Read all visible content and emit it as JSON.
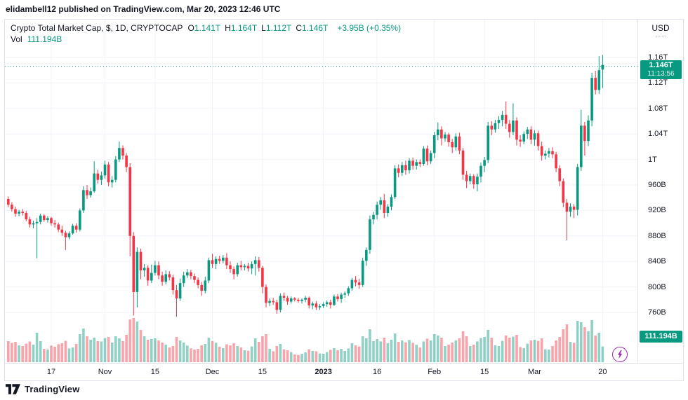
{
  "header": {
    "attribution": "elidambell12 published on TradingView.com, Mar 20, 2023 12:46 UTC"
  },
  "legend": {
    "title": "Crypto Total Market Cap, $, 1D, CRYPTOCAP",
    "ohlc": [
      {
        "k": "O",
        "v": "1.141T"
      },
      {
        "k": "H",
        "v": "1.164T"
      },
      {
        "k": "L",
        "v": "1.112T"
      },
      {
        "k": "C",
        "v": "1.146T"
      }
    ],
    "change": "+3.95B (+0.35%)",
    "vol_label": "Vol",
    "vol_value": "111.194B"
  },
  "price_axis": {
    "unit": "USD",
    "ticks": [
      {
        "value": 1160,
        "label": "1.16T"
      },
      {
        "value": 1120,
        "label": "1.12T"
      },
      {
        "value": 1080,
        "label": "1.08T"
      },
      {
        "value": 1040,
        "label": "1.04T"
      },
      {
        "value": 1000,
        "label": "1T"
      },
      {
        "value": 960,
        "label": "960B"
      },
      {
        "value": 920,
        "label": "920B"
      },
      {
        "value": 880,
        "label": "880B"
      },
      {
        "value": 840,
        "label": "840B"
      },
      {
        "value": 800,
        "label": "800B"
      },
      {
        "value": 760,
        "label": "760B"
      }
    ],
    "last_price_badge": {
      "price": "1.146T",
      "countdown": "11:13:56"
    },
    "volume_badge": "111.194B"
  },
  "time_axis": {
    "ticks": [
      {
        "index": 12,
        "label": "17"
      },
      {
        "index": 27,
        "label": "Nov"
      },
      {
        "index": 41,
        "label": "15"
      },
      {
        "index": 57,
        "label": "Dec"
      },
      {
        "index": 71,
        "label": "15"
      },
      {
        "index": 88,
        "label": "2023",
        "bold": true
      },
      {
        "index": 103,
        "label": "16"
      },
      {
        "index": 119,
        "label": "Feb"
      },
      {
        "index": 133,
        "label": "15"
      },
      {
        "index": 147,
        "label": "Mar"
      },
      {
        "index": 166,
        "label": "20"
      }
    ]
  },
  "footer": {
    "brand": "TradingView"
  },
  "colors": {
    "up": "#089981",
    "down": "#f23645",
    "vol_up": "rgba(8,153,129,0.45)",
    "vol_down": "rgba(242,54,69,0.45)",
    "grid": "#f0f3fa",
    "text": "#131722",
    "badge": "#089981",
    "lightning": "#9c27b0"
  },
  "chart_data": {
    "type": "candlestick",
    "title": "Crypto Total Market Cap",
    "interval": "1D",
    "currency": "USD",
    "units": "billions USD",
    "start_date": "2022-10-05",
    "end_date": "2023-03-20",
    "ylim": [
      740,
      1185
    ],
    "grid": true,
    "current_price": 1146,
    "current_volume": 111.194,
    "candles_format": [
      "open",
      "high",
      "low",
      "close",
      "volume"
    ],
    "candles": [
      [
        938,
        942,
        925,
        929,
        150
      ],
      [
        929,
        933,
        918,
        922,
        138
      ],
      [
        922,
        926,
        910,
        915,
        145
      ],
      [
        915,
        921,
        911,
        918,
        120
      ],
      [
        918,
        922,
        912,
        916,
        115
      ],
      [
        916,
        919,
        903,
        906,
        132
      ],
      [
        906,
        910,
        893,
        898,
        148
      ],
      [
        898,
        904,
        892,
        900,
        125
      ],
      [
        900,
        908,
        845,
        902,
        210
      ],
      [
        902,
        915,
        898,
        912,
        150
      ],
      [
        912,
        914,
        902,
        905,
        95
      ],
      [
        905,
        911,
        901,
        908,
        90
      ],
      [
        908,
        910,
        896,
        900,
        118
      ],
      [
        900,
        905,
        893,
        898,
        110
      ],
      [
        898,
        901,
        886,
        890,
        128
      ],
      [
        890,
        896,
        880,
        885,
        135
      ],
      [
        885,
        888,
        858,
        878,
        152
      ],
      [
        878,
        887,
        875,
        884,
        98
      ],
      [
        884,
        899,
        882,
        896,
        105
      ],
      [
        896,
        900,
        885,
        890,
        130
      ],
      [
        890,
        923,
        887,
        920,
        200
      ],
      [
        920,
        958,
        916,
        952,
        240
      ],
      [
        952,
        960,
        938,
        944,
        185
      ],
      [
        944,
        956,
        940,
        950,
        160
      ],
      [
        950,
        997,
        948,
        978,
        175
      ],
      [
        978,
        984,
        962,
        968,
        150
      ],
      [
        968,
        981,
        960,
        975,
        148
      ],
      [
        975,
        998,
        970,
        992,
        172
      ],
      [
        992,
        996,
        958,
        964,
        180
      ],
      [
        964,
        974,
        956,
        968,
        140
      ],
      [
        968,
        1005,
        964,
        1000,
        185
      ],
      [
        1000,
        1028,
        996,
        1018,
        170
      ],
      [
        1018,
        1022,
        1000,
        1006,
        150
      ],
      [
        1006,
        1010,
        980,
        988,
        195
      ],
      [
        988,
        994,
        848,
        880,
        305
      ],
      [
        880,
        886,
        755,
        792,
        315
      ],
      [
        792,
        862,
        768,
        855,
        290
      ],
      [
        855,
        860,
        812,
        826,
        230
      ],
      [
        826,
        836,
        816,
        830,
        185
      ],
      [
        830,
        834,
        802,
        810,
        160
      ],
      [
        810,
        835,
        806,
        822,
        165
      ],
      [
        822,
        841,
        818,
        834,
        170
      ],
      [
        834,
        840,
        812,
        818,
        155
      ],
      [
        818,
        824,
        802,
        808,
        140
      ],
      [
        808,
        826,
        804,
        820,
        125
      ],
      [
        820,
        825,
        810,
        815,
        105
      ],
      [
        815,
        819,
        788,
        795,
        115
      ],
      [
        795,
        803,
        753,
        782,
        180
      ],
      [
        782,
        813,
        778,
        806,
        155
      ],
      [
        806,
        824,
        800,
        818,
        140
      ],
      [
        818,
        828,
        814,
        823,
        118
      ],
      [
        823,
        827,
        812,
        817,
        98
      ],
      [
        817,
        821,
        806,
        811,
        90
      ],
      [
        811,
        815,
        798,
        803,
        95
      ],
      [
        803,
        808,
        786,
        794,
        120
      ],
      [
        794,
        816,
        790,
        810,
        130
      ],
      [
        810,
        846,
        806,
        842,
        175
      ],
      [
        842,
        852,
        830,
        836,
        150
      ],
      [
        836,
        848,
        828,
        844,
        138
      ],
      [
        844,
        849,
        836,
        841,
        110
      ],
      [
        841,
        850,
        837,
        846,
        100
      ],
      [
        846,
        853,
        828,
        834,
        128
      ],
      [
        834,
        840,
        822,
        828,
        120
      ],
      [
        828,
        832,
        812,
        820,
        135
      ],
      [
        820,
        838,
        816,
        834,
        115
      ],
      [
        834,
        841,
        826,
        831,
        105
      ],
      [
        831,
        836,
        826,
        833,
        85
      ],
      [
        833,
        838,
        824,
        829,
        82
      ],
      [
        829,
        840,
        820,
        836,
        112
      ],
      [
        836,
        848,
        818,
        842,
        170
      ],
      [
        842,
        847,
        824,
        830,
        145
      ],
      [
        830,
        833,
        790,
        800,
        185
      ],
      [
        800,
        804,
        768,
        775,
        200
      ],
      [
        775,
        782,
        770,
        778,
        95
      ],
      [
        778,
        783,
        772,
        776,
        78
      ],
      [
        776,
        780,
        758,
        764,
        115
      ],
      [
        764,
        790,
        760,
        786,
        130
      ],
      [
        786,
        791,
        778,
        783,
        92
      ],
      [
        783,
        786,
        772,
        777,
        85
      ],
      [
        777,
        785,
        774,
        782,
        70
      ],
      [
        782,
        784,
        777,
        780,
        55
      ],
      [
        780,
        783,
        775,
        778,
        52
      ],
      [
        778,
        782,
        774,
        780,
        60
      ],
      [
        780,
        786,
        776,
        783,
        70
      ],
      [
        783,
        785,
        766,
        771,
        92
      ],
      [
        771,
        777,
        765,
        774,
        80
      ],
      [
        774,
        778,
        764,
        768,
        78
      ],
      [
        768,
        773,
        764,
        770,
        62
      ],
      [
        770,
        776,
        767,
        773,
        60
      ],
      [
        773,
        779,
        769,
        776,
        72
      ],
      [
        776,
        780,
        766,
        772,
        88
      ],
      [
        772,
        788,
        770,
        785,
        100
      ],
      [
        785,
        789,
        777,
        781,
        85
      ],
      [
        781,
        791,
        775,
        788,
        95
      ],
      [
        788,
        793,
        783,
        790,
        80
      ],
      [
        790,
        801,
        786,
        798,
        98
      ],
      [
        798,
        814,
        794,
        811,
        135
      ],
      [
        811,
        817,
        801,
        807,
        120
      ],
      [
        807,
        813,
        797,
        803,
        112
      ],
      [
        803,
        846,
        800,
        841,
        185
      ],
      [
        841,
        862,
        833,
        858,
        170
      ],
      [
        858,
        912,
        852,
        906,
        235
      ],
      [
        906,
        918,
        898,
        913,
        150
      ],
      [
        913,
        934,
        906,
        929,
        165
      ],
      [
        929,
        941,
        921,
        936,
        148
      ],
      [
        936,
        946,
        908,
        916,
        175
      ],
      [
        916,
        930,
        910,
        926,
        135
      ],
      [
        926,
        945,
        920,
        941,
        160
      ],
      [
        941,
        991,
        938,
        986,
        205
      ],
      [
        986,
        992,
        972,
        979,
        145
      ],
      [
        979,
        996,
        974,
        991,
        155
      ],
      [
        991,
        998,
        976,
        983,
        142
      ],
      [
        983,
        1002,
        978,
        998,
        158
      ],
      [
        998,
        1003,
        984,
        990,
        138
      ],
      [
        990,
        1000,
        984,
        996,
        125
      ],
      [
        996,
        1000,
        988,
        993,
        105
      ],
      [
        993,
        1021,
        990,
        1017,
        148
      ],
      [
        1017,
        1022,
        991,
        997,
        168
      ],
      [
        997,
        1014,
        993,
        1010,
        155
      ],
      [
        1010,
        1043,
        1002,
        1038,
        200
      ],
      [
        1038,
        1058,
        1030,
        1047,
        190
      ],
      [
        1047,
        1052,
        1022,
        1033,
        175
      ],
      [
        1033,
        1043,
        1028,
        1039,
        115
      ],
      [
        1039,
        1042,
        1020,
        1027,
        125
      ],
      [
        1027,
        1032,
        1010,
        1019,
        140
      ],
      [
        1019,
        1041,
        1014,
        1036,
        155
      ],
      [
        1036,
        1042,
        1008,
        1014,
        170
      ],
      [
        1014,
        1018,
        968,
        976,
        220
      ],
      [
        976,
        982,
        955,
        966,
        185
      ],
      [
        966,
        978,
        961,
        974,
        115
      ],
      [
        974,
        977,
        954,
        961,
        125
      ],
      [
        961,
        978,
        950,
        973,
        148
      ],
      [
        973,
        995,
        964,
        990,
        172
      ],
      [
        990,
        1004,
        980,
        999,
        180
      ],
      [
        999,
        1059,
        994,
        1053,
        230
      ],
      [
        1053,
        1060,
        1038,
        1047,
        175
      ],
      [
        1047,
        1062,
        1042,
        1057,
        120
      ],
      [
        1057,
        1068,
        1048,
        1062,
        115
      ],
      [
        1062,
        1076,
        1052,
        1070,
        152
      ],
      [
        1070,
        1091,
        1048,
        1056,
        190
      ],
      [
        1056,
        1062,
        1034,
        1043,
        175
      ],
      [
        1043,
        1088,
        1038,
        1061,
        182
      ],
      [
        1061,
        1066,
        1022,
        1031,
        195
      ],
      [
        1031,
        1038,
        1020,
        1028,
        108
      ],
      [
        1028,
        1044,
        1024,
        1040,
        100
      ],
      [
        1040,
        1051,
        1032,
        1047,
        132
      ],
      [
        1047,
        1052,
        1024,
        1031,
        155
      ],
      [
        1031,
        1046,
        1022,
        1041,
        160
      ],
      [
        1041,
        1045,
        1014,
        1021,
        152
      ],
      [
        1021,
        1028,
        998,
        1006,
        170
      ],
      [
        1006,
        1014,
        1000,
        1009,
        92
      ],
      [
        1009,
        1018,
        1003,
        1013,
        90
      ],
      [
        1013,
        1019,
        1002,
        1008,
        115
      ],
      [
        1008,
        1012,
        980,
        986,
        155
      ],
      [
        986,
        991,
        958,
        966,
        180
      ],
      [
        966,
        970,
        925,
        932,
        235
      ],
      [
        932,
        938,
        873,
        918,
        270
      ],
      [
        918,
        931,
        910,
        926,
        145
      ],
      [
        926,
        930,
        908,
        921,
        138
      ],
      [
        921,
        993,
        912,
        988,
        295
      ],
      [
        988,
        1078,
        982,
        1053,
        285
      ],
      [
        1053,
        1059,
        1006,
        1029,
        250
      ],
      [
        1029,
        1069,
        1021,
        1061,
        220
      ],
      [
        1061,
        1136,
        1052,
        1128,
        300
      ],
      [
        1128,
        1139,
        1102,
        1109,
        190
      ],
      [
        1109,
        1162,
        1103,
        1140,
        210
      ],
      [
        1141,
        1164,
        1112,
        1146,
        111.194
      ]
    ]
  }
}
